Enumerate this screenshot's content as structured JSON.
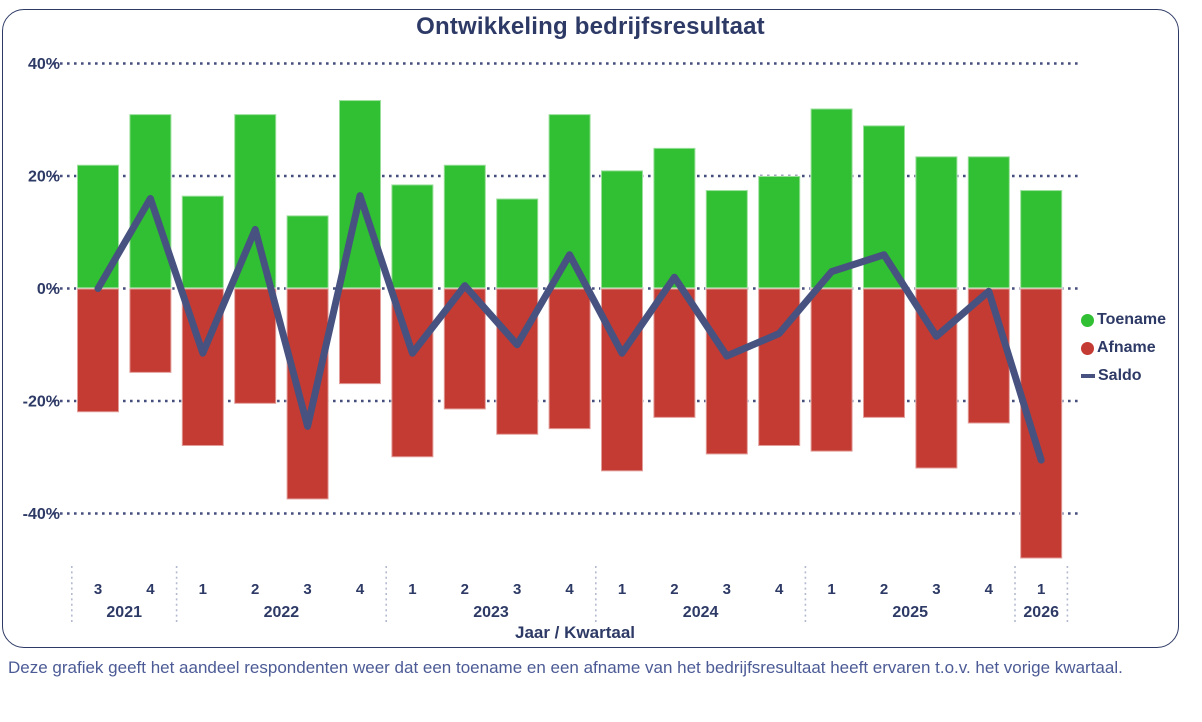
{
  "title": "Ontwikkeling bedrijfsresultaat",
  "caption": "Deze grafiek geeft het aandeel respondenten weer dat een toename en een afname van het bedrijfsresultaat heeft ervaren t.o.v. het vorige kwartaal.",
  "legend": {
    "toename": "Toename",
    "afname": "Afname",
    "saldo": "Saldo"
  },
  "colors": {
    "toename": "#31bf33",
    "afname": "#c43b33",
    "saldo": "#475280",
    "text": "#2e3a66",
    "grid": "#454f7e",
    "year_separator": "#b3bacf",
    "caption_text": "#4c5b96",
    "card_border": "#2e3a66"
  },
  "chart_data": {
    "type": "bar",
    "subtype": "stacked-diverging bars with line overlay",
    "title": "Ontwikkeling bedrijfsresultaat",
    "x_axis_label": "Jaar / Kwartaal",
    "ylabel": "",
    "ylim": [
      -50,
      42
    ],
    "grid": "dotted horizontal",
    "legend_position": "right",
    "y_ticks": [
      {
        "value": 40,
        "label": "40%"
      },
      {
        "value": 20,
        "label": "20%"
      },
      {
        "value": 0,
        "label": "0%"
      },
      {
        "value": -20,
        "label": "-20%"
      },
      {
        "value": -40,
        "label": "-40%"
      }
    ],
    "quarters": [
      "3",
      "4",
      "1",
      "2",
      "3",
      "4",
      "1",
      "2",
      "3",
      "4",
      "1",
      "2",
      "3",
      "4",
      "1",
      "2",
      "3",
      "4",
      "1"
    ],
    "year_groups": [
      {
        "label": "2021",
        "count": 2
      },
      {
        "label": "2022",
        "count": 4
      },
      {
        "label": "2023",
        "count": 4
      },
      {
        "label": "2024",
        "count": 4
      },
      {
        "label": "2025",
        "count": 4
      },
      {
        "label": "2026",
        "count": 1
      }
    ],
    "series": [
      {
        "name": "Toename",
        "type": "bar",
        "color": "#31bf33",
        "values": [
          22,
          31,
          16.5,
          31,
          13,
          33.5,
          18.5,
          22,
          16,
          31,
          21,
          25,
          17.5,
          20,
          32,
          29,
          23.5,
          23.5,
          17.5
        ]
      },
      {
        "name": "Afname",
        "type": "bar",
        "color": "#c43b33",
        "values": [
          -22,
          -15,
          -28,
          -20.5,
          -37.5,
          -17,
          -30,
          -21.5,
          -26,
          -25,
          -32.5,
          -23,
          -29.5,
          -28,
          -29,
          -23,
          -32,
          -24,
          -48
        ]
      },
      {
        "name": "Saldo",
        "type": "line",
        "color": "#475280",
        "values": [
          0,
          16,
          -11.5,
          10.5,
          -24.5,
          16.5,
          -11.5,
          0.5,
          -10,
          6,
          -11.5,
          2,
          -12,
          -8,
          3,
          6,
          -8.5,
          -0.5,
          -30.5
        ]
      }
    ]
  }
}
